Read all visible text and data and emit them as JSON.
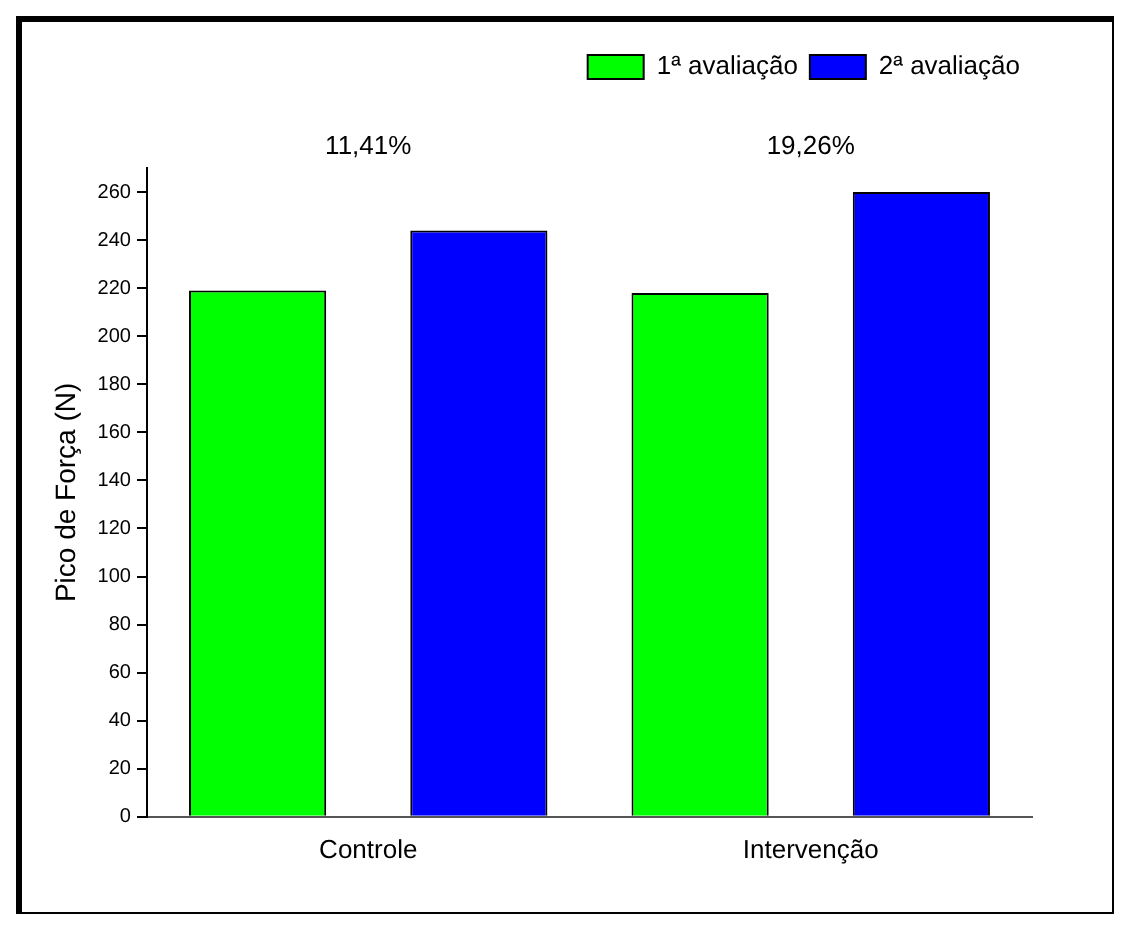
{
  "chart_data": {
    "type": "bar",
    "ylabel": "Pico de Força (N)",
    "categories": [
      "Controle",
      "Intervenção"
    ],
    "series": [
      {
        "name": "1ª avaliação",
        "color": "#00ff00",
        "values": [
          219,
          218
        ]
      },
      {
        "name": "2ª avaliação",
        "color": "#0000ff",
        "values": [
          244,
          260
        ]
      }
    ],
    "ylim": [
      0,
      270
    ],
    "yticks": [
      0,
      20,
      40,
      60,
      80,
      100,
      120,
      140,
      160,
      180,
      200,
      220,
      240,
      260
    ],
    "annotations": [
      "11,41%",
      "19,26%"
    ],
    "grid": false,
    "legend": "top right"
  }
}
